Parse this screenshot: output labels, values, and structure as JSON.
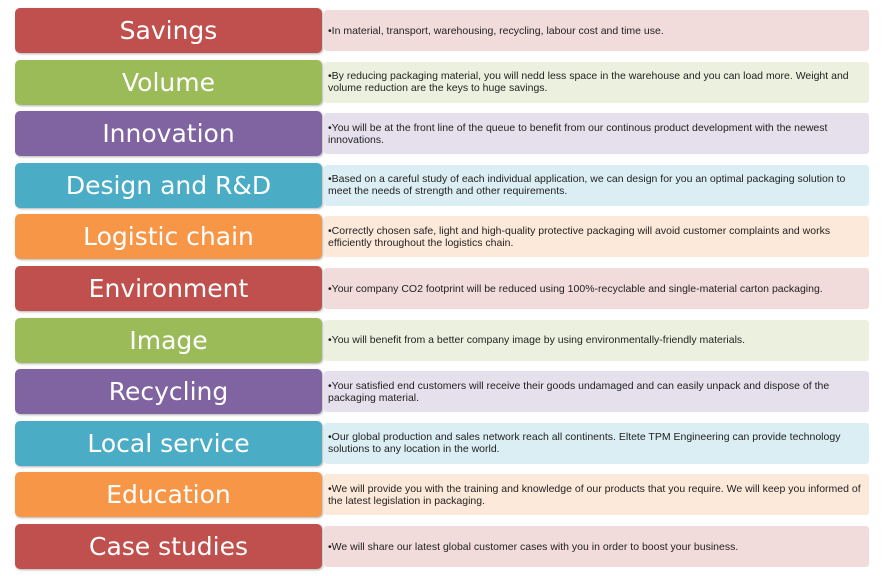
{
  "items": [
    {
      "label": "Savings",
      "text": "•In material, transport, warehousing, recycling, labour cost and time use."
    },
    {
      "label": "Volume",
      "text": "•By reducing packaging material, you will nedd less space in the warehouse and you can load more. Weight and volume reduction are the keys to huge savings."
    },
    {
      "label": "Innovation",
      "text": "•You will be at the front line of the queue to benefit from our continous product development with the newest innovations."
    },
    {
      "label": "Design and R&D",
      "text": "•Based on a careful study of each individual application, we can design for you an optimal packaging solution to meet the needs of strength and other requirements."
    },
    {
      "label": "Logistic chain",
      "text": "•Correctly chosen safe, light and high-quality protective packaging will avoid customer complaints and works efficiently throughout the logistics chain."
    },
    {
      "label": "Environment",
      "text": "•Your company CO2 footprint will be reduced using 100%-recyclable and single-material  carton packaging."
    },
    {
      "label": "Image",
      "text": "•You will benefit from a better company image by using environmentally-friendly materials."
    },
    {
      "label": "Recycling",
      "text": "•Your satisfied end customers will receive their goods undamaged and can easily unpack and dispose of the packaging material."
    },
    {
      "label": "Local service",
      "text": "•Our global production and sales network reach all continents. Eltete TPM Engineering can provide technology solutions to any location in the world."
    },
    {
      "label": "Education",
      "text": "•We will provide you with the training and knowledge of our products that you require.  We will keep you informed of the latest legislation in packaging."
    },
    {
      "label": "Case studies",
      "text": "•We will share our latest global customer cases with you in order to boost your business."
    }
  ]
}
